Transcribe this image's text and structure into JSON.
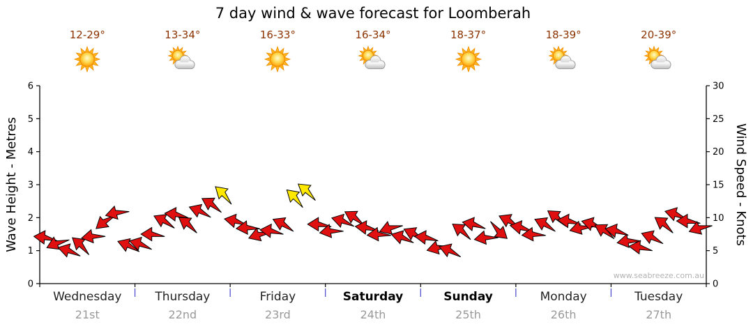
{
  "watermark": "www.seabreeze.com.au",
  "colors": {
    "background": "#ffffff",
    "temperature_text": "#8b3200",
    "day_label": "#222222",
    "weekend_label": "#000000",
    "date_label": "#999999",
    "axis": "#000000",
    "tick_label": "#000000",
    "day_separator": "#4444cc",
    "watermark": "#b3b3b3"
  },
  "days": [
    {
      "name": "Wednesday",
      "date": "21st",
      "temp": "12-29°",
      "icon": "sun",
      "weekend": false
    },
    {
      "name": "Thursday",
      "date": "22nd",
      "temp": "13-34°",
      "icon": "sun-cloud",
      "weekend": false
    },
    {
      "name": "Friday",
      "date": "23rd",
      "temp": "16-33°",
      "icon": "sun",
      "weekend": false
    },
    {
      "name": "Saturday",
      "date": "24th",
      "temp": "16-34°",
      "icon": "sun-cloud",
      "weekend": true
    },
    {
      "name": "Sunday",
      "date": "25th",
      "temp": "18-37°",
      "icon": "sun",
      "weekend": true
    },
    {
      "name": "Monday",
      "date": "26th",
      "temp": "18-39°",
      "icon": "sun-cloud",
      "weekend": false
    },
    {
      "name": "Tuesday",
      "date": "27th",
      "temp": "20-39°",
      "icon": "sun-cloud",
      "weekend": false
    }
  ],
  "chart_data": {
    "type": "wind-arrows",
    "title": "7 day wind & wave forecast for Loomberah",
    "wave_axis": {
      "label": "Wave Height - Metres",
      "side": "left",
      "range": [
        0,
        6
      ],
      "ticks": [
        0,
        1,
        2,
        3,
        4,
        5,
        6
      ]
    },
    "wind_axis": {
      "label": "Wind Speed - Knots",
      "side": "right",
      "range": [
        0,
        30
      ],
      "ticks": [
        0,
        5,
        10,
        15,
        20,
        25,
        30
      ]
    },
    "x_axis": {
      "days": [
        "Wednesday",
        "Thursday",
        "Friday",
        "Saturday",
        "Sunday",
        "Monday",
        "Tuesday"
      ],
      "samples_per_day": 8,
      "sample_interval_hours": 3
    },
    "grid": false,
    "legend": false,
    "arrow_colors": {
      "normal": "#e01010",
      "strong": "#ffe800",
      "outline": "#000000",
      "strong_threshold_knots": 12.5
    },
    "wind_points": {
      "format": "[knots, direction_deg_clockwise_from_east]",
      "values": [
        [
          7.0,
          185
        ],
        [
          6.2,
          155
        ],
        [
          5.0,
          195
        ],
        [
          5.8,
          220
        ],
        [
          7.2,
          170
        ],
        [
          9.5,
          140
        ],
        [
          10.8,
          165
        ],
        [
          5.8,
          200
        ],
        [
          6.0,
          195
        ],
        [
          7.5,
          180
        ],
        [
          9.5,
          205
        ],
        [
          10.5,
          185
        ],
        [
          9.0,
          215
        ],
        [
          11.0,
          200
        ],
        [
          12.0,
          210
        ],
        [
          13.5,
          222
        ],
        [
          9.5,
          190
        ],
        [
          8.5,
          175
        ],
        [
          7.5,
          160
        ],
        [
          8.0,
          185
        ],
        [
          9.0,
          205
        ],
        [
          13.0,
          222
        ],
        [
          14.0,
          218
        ],
        [
          9.0,
          180
        ],
        [
          8.0,
          170
        ],
        [
          9.5,
          195
        ],
        [
          10.0,
          210
        ],
        [
          8.5,
          185
        ],
        [
          7.5,
          175
        ],
        [
          8.5,
          160
        ],
        [
          7.0,
          195
        ],
        [
          7.5,
          205
        ],
        [
          7.0,
          185
        ],
        [
          5.5,
          165
        ],
        [
          5.0,
          200
        ],
        [
          8.0,
          215
        ],
        [
          9.0,
          190
        ],
        [
          7.0,
          170
        ],
        [
          8.0,
          40
        ],
        [
          9.5,
          205
        ],
        [
          8.5,
          190
        ],
        [
          7.5,
          175
        ],
        [
          9.0,
          205
        ],
        [
          10.0,
          215
        ],
        [
          9.5,
          185
        ],
        [
          8.5,
          165
        ],
        [
          9.0,
          195
        ],
        [
          8.0,
          210
        ],
        [
          8.0,
          190
        ],
        [
          6.5,
          170
        ],
        [
          5.5,
          185
        ],
        [
          7.0,
          200
        ],
        [
          9.0,
          215
        ],
        [
          10.5,
          195
        ],
        [
          9.5,
          180
        ],
        [
          8.5,
          160
        ]
      ]
    }
  }
}
